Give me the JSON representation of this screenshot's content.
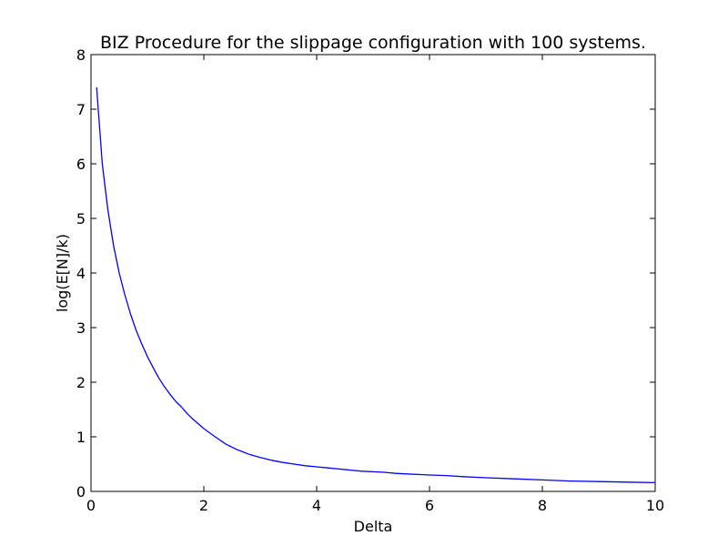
{
  "chart_data": {
    "type": "line",
    "title": "BIZ Procedure for the slippage configuration with 100 systems.",
    "xlabel": "Delta",
    "ylabel": "log(E[N]/k)",
    "xlim": [
      0,
      10
    ],
    "ylim": [
      0,
      8
    ],
    "xticks": [
      0,
      2,
      4,
      6,
      8,
      10
    ],
    "yticks": [
      0,
      1,
      2,
      3,
      4,
      5,
      6,
      7,
      8
    ],
    "grid": false,
    "legend": "none",
    "series": [
      {
        "color": "#0000ff",
        "x": [
          0.1,
          0.2,
          0.3,
          0.4,
          0.5,
          0.6,
          0.7,
          0.8,
          0.9,
          1.0,
          1.1,
          1.2,
          1.3,
          1.4,
          1.5,
          1.6,
          1.7,
          1.8,
          1.9,
          2.0,
          2.2,
          2.4,
          2.6,
          2.8,
          3.0,
          3.2,
          3.4,
          3.6,
          3.8,
          4.0,
          4.2,
          4.4,
          4.6,
          4.8,
          5.0,
          5.2,
          5.4,
          5.6,
          5.8,
          6.0,
          6.3,
          6.6,
          7.0,
          7.5,
          8.0,
          8.5,
          9.0,
          9.5,
          10.0
        ],
        "y": [
          7.4,
          6.0,
          5.15,
          4.5,
          4.0,
          3.6,
          3.25,
          2.95,
          2.7,
          2.47,
          2.27,
          2.08,
          1.92,
          1.78,
          1.65,
          1.55,
          1.43,
          1.33,
          1.24,
          1.15,
          1.0,
          0.86,
          0.76,
          0.68,
          0.62,
          0.57,
          0.53,
          0.5,
          0.47,
          0.45,
          0.43,
          0.41,
          0.39,
          0.37,
          0.36,
          0.35,
          0.33,
          0.32,
          0.31,
          0.3,
          0.29,
          0.27,
          0.25,
          0.23,
          0.21,
          0.19,
          0.18,
          0.17,
          0.16
        ]
      }
    ]
  }
}
